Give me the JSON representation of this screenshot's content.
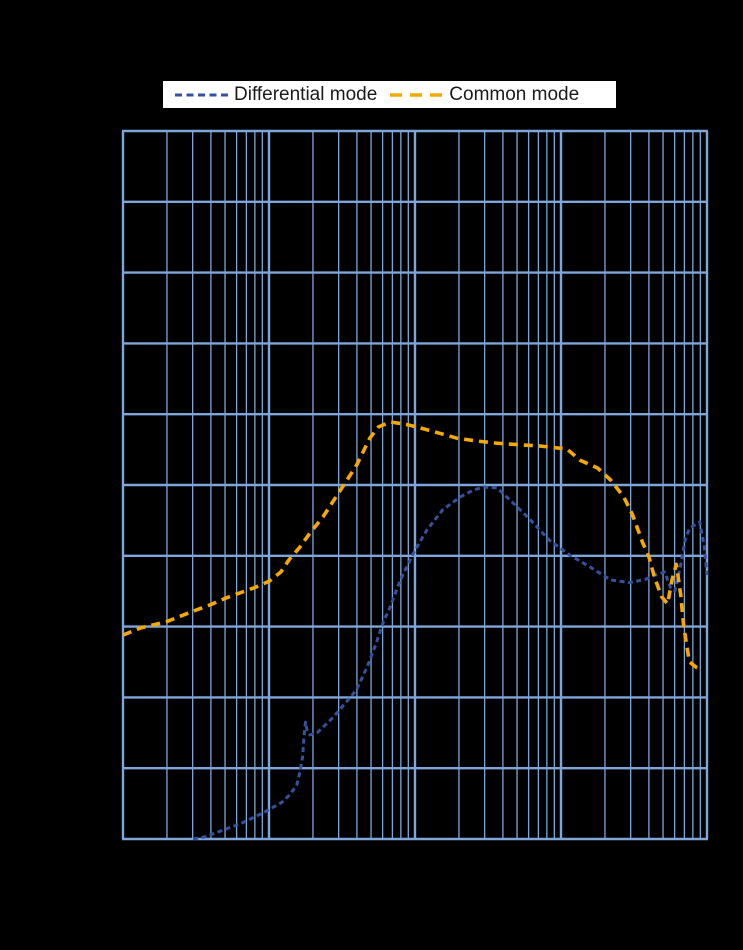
{
  "legend": {
    "items": [
      {
        "label": "Differential mode",
        "color": "#35519f",
        "sample_dash": "7 4.5",
        "sample_width": "3"
      },
      {
        "label": "Common mode",
        "color": "#f5a800",
        "sample_dash": "12 8",
        "sample_width": "3.6"
      }
    ],
    "background": "#ffffff",
    "text_color": "#1a1a1a"
  },
  "chart_data": {
    "type": "line",
    "title": "",
    "x_axis": {
      "scale": "log",
      "decades": 4,
      "minor_ticks_per_decade": [
        2,
        3,
        4,
        5,
        6,
        7,
        8,
        9
      ],
      "unit": "decade index from left edge (tick labels not visible in image)"
    },
    "y_axis": {
      "scale": "linear",
      "divisions": 10,
      "range": [
        0,
        10
      ],
      "unit": "grid divisions from bottom edge (tick labels not visible in image)"
    },
    "grid": true,
    "legend_position": "top-center",
    "colors": {
      "background": "#000000",
      "grid_major": "#7ea6d8",
      "grid_minor": "#7ea6d8",
      "differential_mode": "#35519f",
      "common_mode": "#f5a800"
    },
    "series": [
      {
        "name": "Differential mode",
        "color": "#35519f",
        "dash": "5 3.5",
        "width": 3,
        "points": [
          [
            0.48,
            0.0
          ],
          [
            0.56,
            0.03
          ],
          [
            0.64,
            0.09
          ],
          [
            0.73,
            0.16
          ],
          [
            0.82,
            0.23
          ],
          [
            0.89,
            0.3
          ],
          [
            0.97,
            0.38
          ],
          [
            1.03,
            0.45
          ],
          [
            1.09,
            0.52
          ],
          [
            1.14,
            0.62
          ],
          [
            1.19,
            0.76
          ],
          [
            1.21,
            0.93
          ],
          [
            1.23,
            1.16
          ],
          [
            1.24,
            1.45
          ],
          [
            1.25,
            1.65
          ],
          [
            1.26,
            1.54
          ],
          [
            1.28,
            1.47
          ],
          [
            1.33,
            1.5
          ],
          [
            1.37,
            1.58
          ],
          [
            1.42,
            1.68
          ],
          [
            1.47,
            1.79
          ],
          [
            1.51,
            1.89
          ],
          [
            1.56,
            2.01
          ],
          [
            1.6,
            2.11
          ],
          [
            1.62,
            2.2
          ],
          [
            1.67,
            2.42
          ],
          [
            1.73,
            2.74
          ],
          [
            1.78,
            3.05
          ],
          [
            1.83,
            3.28
          ],
          [
            1.9,
            3.66
          ],
          [
            1.99,
            4.04
          ],
          [
            2.08,
            4.36
          ],
          [
            2.19,
            4.65
          ],
          [
            2.31,
            4.83
          ],
          [
            2.4,
            4.93
          ],
          [
            2.47,
            4.97
          ],
          [
            2.56,
            4.96
          ],
          [
            2.65,
            4.79
          ],
          [
            2.79,
            4.51
          ],
          [
            2.92,
            4.22
          ],
          [
            3.06,
            4.01
          ],
          [
            3.2,
            3.84
          ],
          [
            3.34,
            3.66
          ],
          [
            3.47,
            3.62
          ],
          [
            3.58,
            3.67
          ],
          [
            3.66,
            3.74
          ],
          [
            3.71,
            3.77
          ],
          [
            3.75,
            3.55
          ],
          [
            3.78,
            3.5
          ],
          [
            3.82,
            3.87
          ],
          [
            3.85,
            4.22
          ],
          [
            3.88,
            4.39
          ],
          [
            3.95,
            4.48
          ],
          [
            3.98,
            4.15
          ],
          [
            4.0,
            3.73
          ]
        ]
      },
      {
        "name": "Common mode",
        "color": "#f5a800",
        "dash": "9 6",
        "width": 3.6,
        "points": [
          [
            0.0,
            2.88
          ],
          [
            0.12,
            2.98
          ],
          [
            0.3,
            3.07
          ],
          [
            0.47,
            3.21
          ],
          [
            0.6,
            3.31
          ],
          [
            0.7,
            3.4
          ],
          [
            0.82,
            3.49
          ],
          [
            0.9,
            3.55
          ],
          [
            1.0,
            3.64
          ],
          [
            1.08,
            3.77
          ],
          [
            1.14,
            3.95
          ],
          [
            1.21,
            4.12
          ],
          [
            1.28,
            4.32
          ],
          [
            1.37,
            4.55
          ],
          [
            1.49,
            4.93
          ],
          [
            1.6,
            5.28
          ],
          [
            1.69,
            5.66
          ],
          [
            1.75,
            5.82
          ],
          [
            1.83,
            5.89
          ],
          [
            1.93,
            5.86
          ],
          [
            2.03,
            5.81
          ],
          [
            2.17,
            5.73
          ],
          [
            2.29,
            5.66
          ],
          [
            2.43,
            5.62
          ],
          [
            2.56,
            5.59
          ],
          [
            2.7,
            5.57
          ],
          [
            2.86,
            5.55
          ],
          [
            2.99,
            5.52
          ],
          [
            3.04,
            5.51
          ],
          [
            3.13,
            5.35
          ],
          [
            3.25,
            5.24
          ],
          [
            3.34,
            5.07
          ],
          [
            3.43,
            4.83
          ],
          [
            3.49,
            4.58
          ],
          [
            3.56,
            4.18
          ],
          [
            3.6,
            4.0
          ],
          [
            3.64,
            3.7
          ],
          [
            3.69,
            3.42
          ],
          [
            3.73,
            3.32
          ],
          [
            3.76,
            3.66
          ],
          [
            3.79,
            3.88
          ],
          [
            3.82,
            3.45
          ],
          [
            3.84,
            3.02
          ],
          [
            3.86,
            2.74
          ],
          [
            3.88,
            2.5
          ],
          [
            3.93,
            2.42
          ],
          [
            3.97,
            2.39
          ]
        ]
      }
    ]
  }
}
